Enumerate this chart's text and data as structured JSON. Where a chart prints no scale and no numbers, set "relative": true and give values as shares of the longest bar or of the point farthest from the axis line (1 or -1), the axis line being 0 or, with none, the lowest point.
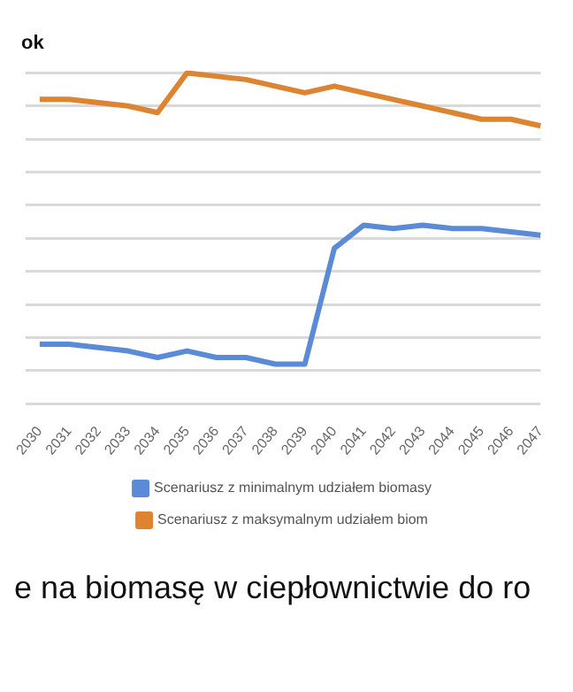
{
  "chart_data": {
    "type": "line",
    "title": "ok",
    "relative": true,
    "grid": "y",
    "legend": "bottom",
    "marker": "none",
    "line_style": "solid",
    "categories": [
      "2030",
      "2031",
      "2032",
      "2033",
      "2034",
      "2035",
      "2036",
      "2037",
      "2038",
      "2039",
      "2040",
      "2041",
      "2042",
      "2043",
      "2044",
      "2045",
      "2046",
      "2047"
    ],
    "series": [
      {
        "name": "Scenariusz z minimalnym udziałem biomasy",
        "color": "#5b8bd6",
        "values": [
          0.18,
          0.18,
          0.17,
          0.16,
          0.14,
          0.16,
          0.14,
          0.14,
          0.12,
          0.12,
          0.47,
          0.54,
          0.53,
          0.54,
          0.53,
          0.53,
          0.52,
          0.51
        ]
      },
      {
        "name": "Scenariusz z maksymalnym udziałem biom",
        "color": "#dd8432",
        "values": [
          0.92,
          0.92,
          0.91,
          0.9,
          0.88,
          1,
          0.99,
          0.98,
          0.96,
          0.94,
          0.96,
          0.94,
          0.92,
          0.9,
          0.88,
          0.86,
          0.86,
          0.84
        ]
      }
    ],
    "annotations": [
      "e na biomasę w ciepłownictwie do ro"
    ]
  }
}
